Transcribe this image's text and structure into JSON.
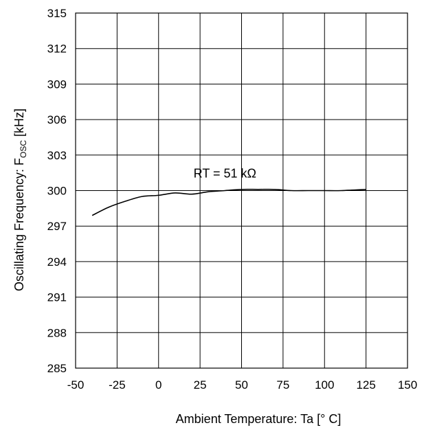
{
  "chart_data": {
    "type": "line",
    "title": "",
    "xlabel": "Ambient Temperature: Ta [° C]",
    "ylabel": "Oscillating Frequency: F",
    "ylabel_subscript": "OSC",
    "ylabel_unit": " [kHz]",
    "xlim": [
      -50,
      150
    ],
    "ylim": [
      285,
      315
    ],
    "x_ticks": [
      "-50",
      "-25",
      "0",
      "25",
      "50",
      "75",
      "100",
      "125",
      "150"
    ],
    "y_ticks": [
      "285",
      "288",
      "291",
      "294",
      "297",
      "300",
      "303",
      "306",
      "309",
      "312",
      "315"
    ],
    "grid": true,
    "annotations": [
      {
        "text": "RT = 51 kΩ",
        "x": 40,
        "y": 301.0
      }
    ],
    "series": [
      {
        "x": [
          -40,
          -30,
          -20,
          -10,
          0,
          10,
          20,
          30,
          40,
          50,
          60,
          70,
          80,
          90,
          100,
          110,
          125
        ],
        "y": [
          297.9,
          298.6,
          299.1,
          299.5,
          299.6,
          299.8,
          299.7,
          299.9,
          300.0,
          300.1,
          300.1,
          300.1,
          300.0,
          300.0,
          300.0,
          300.0,
          300.1
        ]
      }
    ]
  }
}
